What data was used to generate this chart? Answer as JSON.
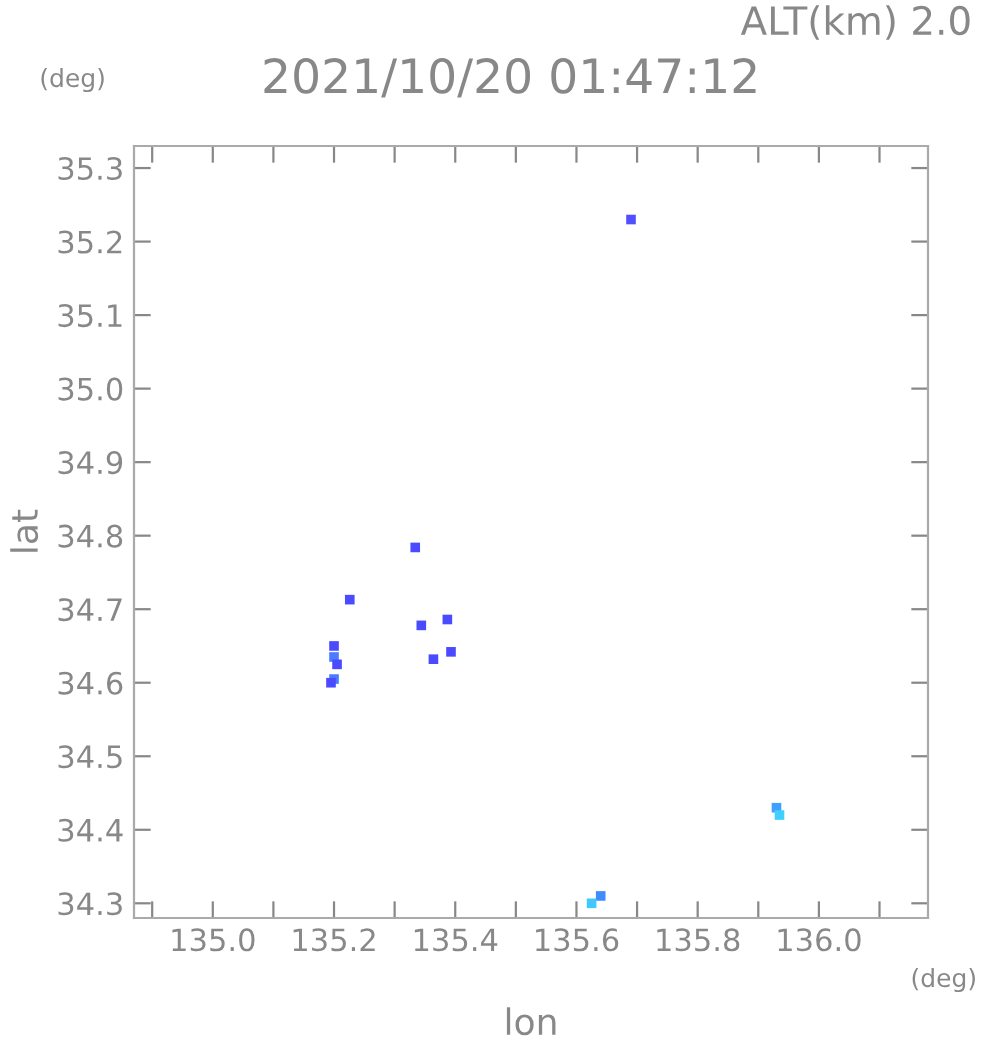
{
  "chart_data": {
    "type": "scatter",
    "title": "2021/10/20 01:47:12",
    "subtitle": "ALT(km) 2.0",
    "xlabel": "lon",
    "ylabel": "lat",
    "annotations": [
      "(deg)",
      "(deg)"
    ],
    "x": [
      135.69,
      135.2,
      135.2,
      135.205,
      135.2,
      135.195,
      135.344,
      135.387,
      135.334,
      135.226,
      135.393,
      135.364,
      135.93,
      135.935,
      135.64,
      135.625
    ],
    "values": [
      35.23,
      34.65,
      34.635,
      34.625,
      34.605,
      34.6,
      34.678,
      34.686,
      34.784,
      34.713,
      34.642,
      34.632,
      34.43,
      34.42,
      34.31,
      34.3
    ],
    "colors": [
      "#5050ff",
      "#4a4aff",
      "#4a7cff",
      "#4a4aff",
      "#4a7cff",
      "#4a4aff",
      "#4a4aff",
      "#4a4aff",
      "#4a4aff",
      "#4a4aff",
      "#4a4aff",
      "#4a4aff",
      "#3fa0ff",
      "#40d0ff",
      "#3f8cff",
      "#40c8ff"
    ],
    "marker": "square",
    "xlim": [
      134.87,
      136.18
    ],
    "ylim": [
      34.28,
      35.33
    ],
    "xticks": [
      {
        "value": 134.9,
        "label": null
      },
      {
        "value": 135.0,
        "label": "135.0"
      },
      {
        "value": 135.1,
        "label": null
      },
      {
        "value": 135.2,
        "label": "135.2"
      },
      {
        "value": 135.3,
        "label": null
      },
      {
        "value": 135.4,
        "label": "135.4"
      },
      {
        "value": 135.5,
        "label": null
      },
      {
        "value": 135.6,
        "label": "135.6"
      },
      {
        "value": 135.7,
        "label": null
      },
      {
        "value": 135.8,
        "label": "135.8"
      },
      {
        "value": 135.9,
        "label": null
      },
      {
        "value": 136.0,
        "label": "136.0"
      },
      {
        "value": 136.1,
        "label": null
      }
    ],
    "yticks": [
      34.3,
      34.4,
      34.5,
      34.6,
      34.7,
      34.8,
      34.9,
      {
        "value": 35.0,
        "label": "35.0"
      },
      35.1,
      35.2,
      35.3
    ],
    "grid": false,
    "legend": false
  }
}
